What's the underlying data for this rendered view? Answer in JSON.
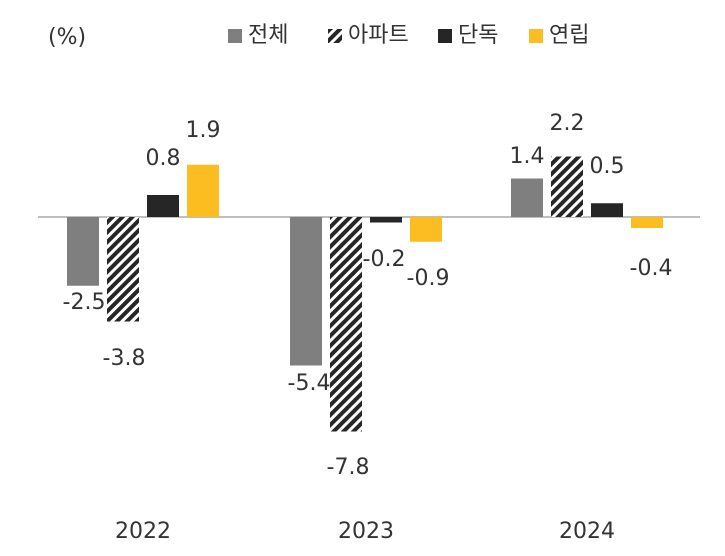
{
  "chart_data": {
    "type": "bar",
    "unit_label": "(%)",
    "categories": [
      "2022",
      "2023",
      "2024"
    ],
    "series": [
      {
        "name": "전체",
        "values": [
          -2.5,
          -5.4,
          1.4
        ],
        "color": "#7f7f7f",
        "pattern": "solid"
      },
      {
        "name": "아파트",
        "values": [
          -3.8,
          -7.8,
          2.2
        ],
        "color": "#262626",
        "pattern": "diagonal-hatch"
      },
      {
        "name": "단독",
        "values": [
          0.8,
          -0.2,
          0.5
        ],
        "color": "#262626",
        "pattern": "solid"
      },
      {
        "name": "연립",
        "values": [
          1.9,
          -0.9,
          -0.4
        ],
        "color": "#fbbd20",
        "pattern": "solid"
      }
    ],
    "value_labels": [
      [
        "-2.5",
        "-5.4",
        "1.4"
      ],
      [
        "-3.8",
        "-7.8",
        "2.2"
      ],
      [
        "0.8",
        "-0.2",
        "0.5"
      ],
      [
        "1.9",
        "-0.9",
        "-0.4"
      ]
    ],
    "ylim": [
      -8,
      2.5
    ],
    "grid": false,
    "legend_position": "top"
  }
}
